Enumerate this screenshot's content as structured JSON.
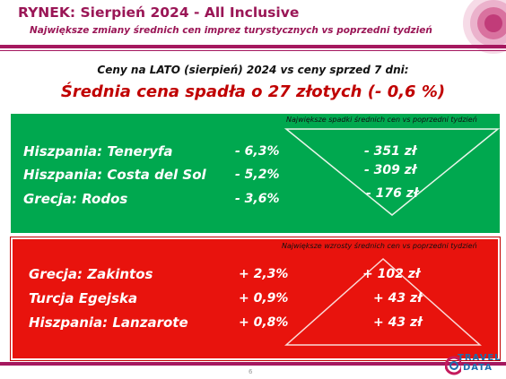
{
  "header": {
    "title": "RYNEK: Sierpień 2024 - All Inclusive",
    "subtitle": "Największe zmiany średnich cen imprez turystycznych vs poprzedni tydzień"
  },
  "summary": {
    "comparison": "Ceny na LATO (sierpień) 2024 vs ceny sprzed 7 dni:",
    "average": "Średnia cena spadła o 27 złotych (- 0,6 %)"
  },
  "decreases": {
    "note": "Największe spadki średnich cen vs poprzedni tydzień",
    "rows": [
      {
        "label": "Hiszpania: Teneryfa",
        "pct": "- 6,3%",
        "value": "- 351 zł"
      },
      {
        "label": "Hiszpania: Costa del Sol",
        "pct": "- 5,2%",
        "value": "- 309 zł"
      },
      {
        "label": "Grecja: Rodos",
        "pct": "- 3,6%",
        "value": "- 176 zł"
      }
    ]
  },
  "increases": {
    "note": "Największe wzrosty średnich cen vs poprzedni tydzień",
    "rows": [
      {
        "label": "Grecja: Zakintos",
        "pct": "+ 2,3%",
        "value": "+ 102 zł"
      },
      {
        "label": "Turcja Egejska",
        "pct": "+ 0,9%",
        "value": "+ 43 zł"
      },
      {
        "label": "Hiszpania: Lanzarote",
        "pct": "+ 0,8%",
        "value": "+ 43 zł"
      }
    ]
  },
  "footer": {
    "page_number": "6",
    "logo_line1": "TRAVEL",
    "logo_line2": "DATA"
  },
  "colors": {
    "brand": "#a5185f",
    "decrease_panel": "#00a84f",
    "increase_panel": "#e8130d",
    "highlight": "#c00000"
  }
}
